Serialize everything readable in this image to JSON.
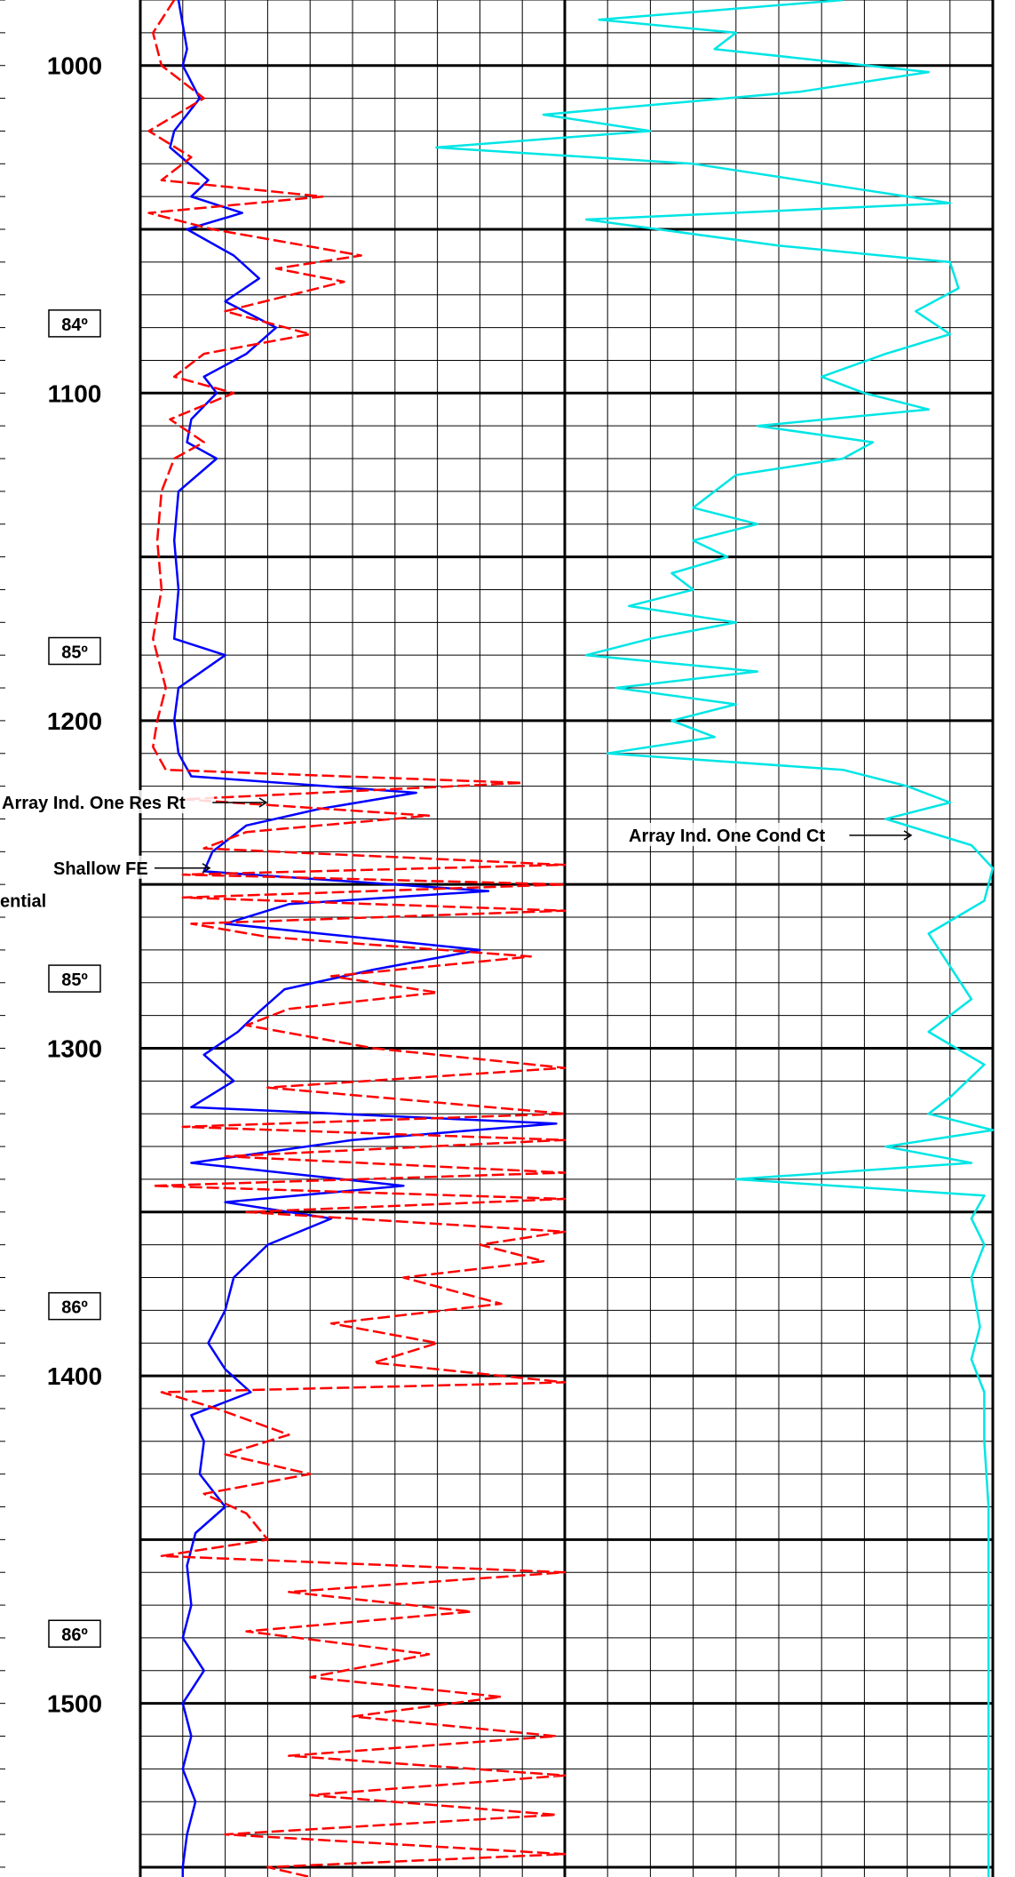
{
  "chart_data": {
    "type": "line",
    "y_axis": {
      "unit": "depth",
      "range": [
        980,
        1553
      ],
      "tick_labels": [
        1000,
        1100,
        1200,
        1300,
        1400,
        1500
      ]
    },
    "inclination_markers": [
      {
        "depth": 1079,
        "label": "84º"
      },
      {
        "depth": 1179,
        "label": "85º"
      },
      {
        "depth": 1279,
        "label": "85º"
      },
      {
        "depth": 1379,
        "label": "86º"
      },
      {
        "depth": 1479,
        "label": "86º"
      }
    ],
    "annotations": [
      {
        "text": "Array Ind. One Res Rt",
        "depth": 1225
      },
      {
        "text": "Shallow FE",
        "depth": 1245
      },
      {
        "text": "ential",
        "depth": 1255
      },
      {
        "text": "Array Ind. One Cond Ct",
        "depth": 1235
      }
    ],
    "series": [
      {
        "color": "#0000ff",
        "style": "solid",
        "x_range": [
          0,
          10
        ],
        "points": [
          [
            980,
            0.9
          ],
          [
            995,
            1.1
          ],
          [
            1000,
            1.0
          ],
          [
            1010,
            1.4
          ],
          [
            1020,
            0.8
          ],
          [
            1025,
            0.7
          ],
          [
            1035,
            1.6
          ],
          [
            1040,
            1.2
          ],
          [
            1045,
            2.4
          ],
          [
            1050,
            1.1
          ],
          [
            1058,
            2.2
          ],
          [
            1065,
            2.8
          ],
          [
            1072,
            2.0
          ],
          [
            1080,
            3.2
          ],
          [
            1088,
            2.5
          ],
          [
            1095,
            1.5
          ],
          [
            1100,
            1.8
          ],
          [
            1108,
            1.2
          ],
          [
            1115,
            1.1
          ],
          [
            1120,
            1.8
          ],
          [
            1130,
            0.9
          ],
          [
            1145,
            0.8
          ],
          [
            1160,
            0.9
          ],
          [
            1175,
            0.8
          ],
          [
            1180,
            2.0
          ],
          [
            1190,
            0.9
          ],
          [
            1200,
            0.8
          ],
          [
            1210,
            0.9
          ],
          [
            1217,
            1.2
          ],
          [
            1222,
            6.5
          ],
          [
            1227,
            4.2
          ],
          [
            1232,
            2.5
          ],
          [
            1240,
            1.7
          ],
          [
            1246,
            1.5
          ],
          [
            1252,
            8.2
          ],
          [
            1256,
            3.5
          ],
          [
            1262,
            2.0
          ],
          [
            1270,
            8.0
          ],
          [
            1276,
            5.5
          ],
          [
            1282,
            3.4
          ],
          [
            1290,
            2.7
          ],
          [
            1295,
            2.3
          ],
          [
            1302,
            1.5
          ],
          [
            1310,
            2.2
          ],
          [
            1318,
            1.2
          ],
          [
            1323,
            9.8
          ],
          [
            1328,
            5.0
          ],
          [
            1335,
            1.2
          ],
          [
            1342,
            6.2
          ],
          [
            1347,
            2.0
          ],
          [
            1352,
            4.5
          ],
          [
            1360,
            3.0
          ],
          [
            1370,
            2.2
          ],
          [
            1380,
            2.0
          ],
          [
            1390,
            1.6
          ],
          [
            1398,
            2.0
          ],
          [
            1405,
            2.6
          ],
          [
            1412,
            1.2
          ],
          [
            1420,
            1.5
          ],
          [
            1430,
            1.4
          ],
          [
            1440,
            2.0
          ],
          [
            1448,
            1.3
          ],
          [
            1458,
            1.1
          ],
          [
            1470,
            1.2
          ],
          [
            1480,
            1.0
          ],
          [
            1490,
            1.5
          ],
          [
            1500,
            1.0
          ],
          [
            1510,
            1.2
          ],
          [
            1520,
            1.0
          ],
          [
            1530,
            1.3
          ],
          [
            1540,
            1.1
          ],
          [
            1550,
            1.0
          ],
          [
            1553,
            1.0
          ]
        ]
      },
      {
        "color": "#ff0000",
        "style": "dashed",
        "x_range": [
          0,
          10
        ],
        "points": [
          [
            980,
            0.8
          ],
          [
            990,
            0.3
          ],
          [
            1000,
            0.5
          ],
          [
            1010,
            1.5
          ],
          [
            1020,
            0.2
          ],
          [
            1028,
            1.2
          ],
          [
            1035,
            0.5
          ],
          [
            1040,
            4.3
          ],
          [
            1045,
            0.2
          ],
          [
            1050,
            1.7
          ],
          [
            1058,
            5.2
          ],
          [
            1062,
            3.2
          ],
          [
            1066,
            4.8
          ],
          [
            1075,
            2.0
          ],
          [
            1082,
            4.0
          ],
          [
            1088,
            1.5
          ],
          [
            1095,
            0.8
          ],
          [
            1100,
            2.2
          ],
          [
            1108,
            0.7
          ],
          [
            1115,
            1.5
          ],
          [
            1120,
            0.8
          ],
          [
            1130,
            0.5
          ],
          [
            1145,
            0.4
          ],
          [
            1160,
            0.5
          ],
          [
            1175,
            0.3
          ],
          [
            1190,
            0.6
          ],
          [
            1200,
            0.4
          ],
          [
            1208,
            0.3
          ],
          [
            1215,
            0.6
          ],
          [
            1219,
            9.0
          ],
          [
            1224,
            1.0
          ],
          [
            1229,
            6.8
          ],
          [
            1234,
            2.5
          ],
          [
            1239,
            1.5
          ],
          [
            1244,
            10.0
          ],
          [
            1247,
            1.0
          ],
          [
            1250,
            10.0
          ],
          [
            1254,
            1.0
          ],
          [
            1258,
            10.0
          ],
          [
            1262,
            1.2
          ],
          [
            1266,
            3.0
          ],
          [
            1272,
            9.2
          ],
          [
            1278,
            4.5
          ],
          [
            1283,
            7.0
          ],
          [
            1288,
            3.5
          ],
          [
            1293,
            2.5
          ],
          [
            1300,
            5.5
          ],
          [
            1306,
            10.0
          ],
          [
            1312,
            3.0
          ],
          [
            1320,
            10.0
          ],
          [
            1324,
            1.0
          ],
          [
            1328,
            10.0
          ],
          [
            1333,
            2.0
          ],
          [
            1338,
            10.0
          ],
          [
            1342,
            0.3
          ],
          [
            1346,
            10.0
          ],
          [
            1350,
            2.5
          ],
          [
            1356,
            10.0
          ],
          [
            1360,
            8.0
          ],
          [
            1365,
            9.5
          ],
          [
            1370,
            6.2
          ],
          [
            1378,
            8.5
          ],
          [
            1384,
            4.5
          ],
          [
            1390,
            7.0
          ],
          [
            1396,
            5.5
          ],
          [
            1402,
            10.0
          ],
          [
            1405,
            0.5
          ],
          [
            1410,
            1.8
          ],
          [
            1418,
            3.5
          ],
          [
            1424,
            2.0
          ],
          [
            1430,
            4.0
          ],
          [
            1436,
            1.5
          ],
          [
            1442,
            2.5
          ],
          [
            1450,
            3.0
          ],
          [
            1455,
            0.5
          ],
          [
            1460,
            10.0
          ],
          [
            1466,
            3.5
          ],
          [
            1472,
            7.8
          ],
          [
            1478,
            2.5
          ],
          [
            1485,
            6.8
          ],
          [
            1492,
            4.0
          ],
          [
            1498,
            8.5
          ],
          [
            1504,
            5.0
          ],
          [
            1510,
            9.8
          ],
          [
            1516,
            3.5
          ],
          [
            1522,
            10.0
          ],
          [
            1528,
            4.0
          ],
          [
            1534,
            9.8
          ],
          [
            1540,
            2.0
          ],
          [
            1546,
            10.0
          ],
          [
            1550,
            3.0
          ],
          [
            1553,
            4.0
          ]
        ]
      },
      {
        "color": "#00e5e5",
        "style": "solid",
        "x_range": [
          10,
          20
        ],
        "points": [
          [
            980,
            16.5
          ],
          [
            986,
            10.8
          ],
          [
            990,
            14.0
          ],
          [
            995,
            13.5
          ],
          [
            1002,
            18.5
          ],
          [
            1008,
            15.5
          ],
          [
            1015,
            9.5
          ],
          [
            1020,
            12.0
          ],
          [
            1025,
            7.0
          ],
          [
            1030,
            13.0
          ],
          [
            1038,
            17.0
          ],
          [
            1042,
            19.0
          ],
          [
            1047,
            10.5
          ],
          [
            1055,
            15.0
          ],
          [
            1060,
            19.0
          ],
          [
            1068,
            19.2
          ],
          [
            1075,
            18.2
          ],
          [
            1082,
            19.0
          ],
          [
            1088,
            17.5
          ],
          [
            1095,
            16.0
          ],
          [
            1100,
            17.0
          ],
          [
            1105,
            18.5
          ],
          [
            1110,
            14.5
          ],
          [
            1115,
            17.2
          ],
          [
            1120,
            16.5
          ],
          [
            1125,
            14.0
          ],
          [
            1130,
            13.5
          ],
          [
            1135,
            13.0
          ],
          [
            1140,
            14.5
          ],
          [
            1145,
            13.0
          ],
          [
            1150,
            13.8
          ],
          [
            1155,
            12.5
          ],
          [
            1160,
            13.0
          ],
          [
            1165,
            11.5
          ],
          [
            1170,
            14.0
          ],
          [
            1175,
            12.0
          ],
          [
            1180,
            10.5
          ],
          [
            1185,
            14.5
          ],
          [
            1190,
            11.2
          ],
          [
            1195,
            14.0
          ],
          [
            1200,
            12.5
          ],
          [
            1205,
            13.5
          ],
          [
            1210,
            11.0
          ],
          [
            1215,
            16.5
          ],
          [
            1220,
            18.0
          ],
          [
            1225,
            19.0
          ],
          [
            1230,
            17.5
          ],
          [
            1238,
            19.5
          ],
          [
            1245,
            20.0
          ],
          [
            1255,
            19.8
          ],
          [
            1265,
            18.5
          ],
          [
            1275,
            19.0
          ],
          [
            1285,
            19.5
          ],
          [
            1295,
            18.5
          ],
          [
            1305,
            19.8
          ],
          [
            1315,
            19.0
          ],
          [
            1320,
            18.5
          ],
          [
            1325,
            20.0
          ],
          [
            1330,
            17.5
          ],
          [
            1335,
            19.5
          ],
          [
            1340,
            14.0
          ],
          [
            1345,
            19.8
          ],
          [
            1352,
            19.5
          ],
          [
            1360,
            19.8
          ],
          [
            1370,
            19.5
          ],
          [
            1385,
            19.7
          ],
          [
            1395,
            19.5
          ],
          [
            1405,
            19.8
          ],
          [
            1420,
            19.8
          ],
          [
            1440,
            19.9
          ],
          [
            1460,
            19.9
          ],
          [
            1480,
            19.9
          ],
          [
            1500,
            19.9
          ],
          [
            1520,
            19.9
          ],
          [
            1540,
            19.9
          ],
          [
            1553,
            19.9
          ]
        ]
      }
    ]
  }
}
